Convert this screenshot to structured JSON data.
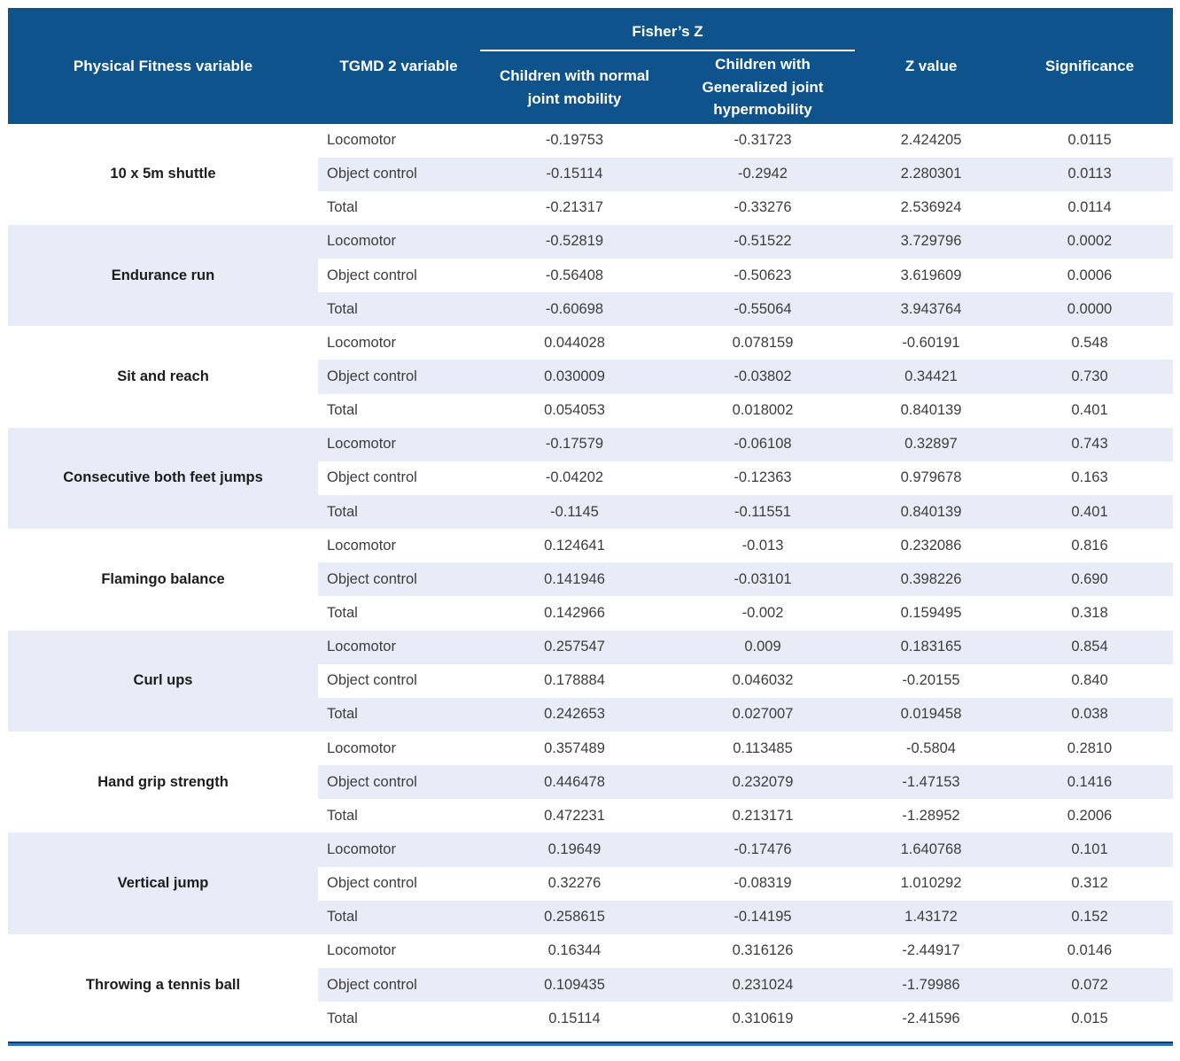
{
  "table": {
    "header": {
      "col_physical": "Physical Fitness variable",
      "col_tgmd": "TGMD 2 variable",
      "fishers_z": "Fisher’s Z",
      "sub_normal": "Children with normal joint mobility",
      "sub_hyper": "Children with Generalized joint hypermobility",
      "col_z": "Z value",
      "col_sig": "Significance"
    },
    "groups": [
      {
        "name": "10 x 5m shuttle",
        "rows": [
          {
            "tgmd": "Locomotor",
            "values": [
              "-0.19753",
              "-0.31723",
              "2.424205",
              "0.0115"
            ]
          },
          {
            "tgmd": "Object control",
            "values": [
              "-0.15114",
              "-0.2942",
              "2.280301",
              "0.0113"
            ]
          },
          {
            "tgmd": "Total",
            "values": [
              "-0.21317",
              "-0.33276",
              "2.536924",
              "0.0114"
            ]
          }
        ]
      },
      {
        "name": "Endurance run",
        "rows": [
          {
            "tgmd": "Locomotor",
            "values": [
              "-0.52819",
              "-0.51522",
              "3.729796",
              "0.0002"
            ]
          },
          {
            "tgmd": "Object control",
            "values": [
              "-0.56408",
              "-0.50623",
              "3.619609",
              "0.0006"
            ]
          },
          {
            "tgmd": "Total",
            "values": [
              "-0.60698",
              "-0.55064",
              "3.943764",
              "0.0000"
            ]
          }
        ]
      },
      {
        "name": "Sit and reach",
        "rows": [
          {
            "tgmd": "Locomotor",
            "values": [
              "0.044028",
              "0.078159",
              "-0.60191",
              "0.548"
            ]
          },
          {
            "tgmd": "Object control",
            "values": [
              "0.030009",
              "-0.03802",
              "0.34421",
              "0.730"
            ]
          },
          {
            "tgmd": "Total",
            "values": [
              "0.054053",
              "0.018002",
              "0.840139",
              "0.401"
            ]
          }
        ]
      },
      {
        "name": "Consecutive both feet jumps",
        "rows": [
          {
            "tgmd": "Locomotor",
            "values": [
              "-0.17579",
              "-0.06108",
              "0.32897",
              "0.743"
            ]
          },
          {
            "tgmd": "Object control",
            "values": [
              "-0.04202",
              "-0.12363",
              "0.979678",
              "0.163"
            ]
          },
          {
            "tgmd": "Total",
            "values": [
              "-0.1145",
              "-0.11551",
              "0.840139",
              "0.401"
            ]
          }
        ]
      },
      {
        "name": "Flamingo balance",
        "rows": [
          {
            "tgmd": "Locomotor",
            "values": [
              "0.124641",
              "-0.013",
              "0.232086",
              "0.816"
            ]
          },
          {
            "tgmd": "Object control",
            "values": [
              "0.141946",
              "-0.03101",
              "0.398226",
              "0.690"
            ]
          },
          {
            "tgmd": "Total",
            "values": [
              "0.142966",
              "-0.002",
              "0.159495",
              "0.318"
            ]
          }
        ]
      },
      {
        "name": "Curl ups",
        "rows": [
          {
            "tgmd": "Locomotor",
            "values": [
              "0.257547",
              "0.009",
              "0.183165",
              "0.854"
            ]
          },
          {
            "tgmd": "Object control",
            "values": [
              "0.178884",
              "0.046032",
              "-0.20155",
              "0.840"
            ]
          },
          {
            "tgmd": "Total",
            "values": [
              "0.242653",
              "0.027007",
              "0.019458",
              "0.038"
            ]
          }
        ]
      },
      {
        "name": "Hand grip strength",
        "rows": [
          {
            "tgmd": "Locomotor",
            "values": [
              "0.357489",
              "0.113485",
              "-0.5804",
              "0.2810"
            ]
          },
          {
            "tgmd": "Object control",
            "values": [
              "0.446478",
              "0.232079",
              "-1.47153",
              "0.1416"
            ]
          },
          {
            "tgmd": "Total",
            "values": [
              "0.472231",
              "0.213171",
              "-1.28952",
              "0.2006"
            ]
          }
        ]
      },
      {
        "name": "Vertical jump",
        "rows": [
          {
            "tgmd": "Locomotor",
            "values": [
              "0.19649",
              "-0.17476",
              "1.640768",
              "0.101"
            ]
          },
          {
            "tgmd": "Object control",
            "values": [
              "0.32276",
              "-0.08319",
              "1.010292",
              "0.312"
            ]
          },
          {
            "tgmd": "Total",
            "values": [
              "0.258615",
              "-0.14195",
              "1.43172",
              "0.152"
            ]
          }
        ]
      },
      {
        "name": "Throwing a tennis ball",
        "rows": [
          {
            "tgmd": "Locomotor",
            "values": [
              "0.16344",
              "0.316126",
              "-2.44917",
              "0.0146"
            ]
          },
          {
            "tgmd": "Object control",
            "values": [
              "0.109435",
              "0.231024",
              "-1.79986",
              "0.072"
            ]
          },
          {
            "tgmd": "Total",
            "values": [
              "0.15114",
              "0.310619",
              "-2.41596",
              "0.015"
            ]
          }
        ]
      }
    ]
  },
  "colors": {
    "header_bg": "#0e538c",
    "row_alt_bg": "#e9ebf7",
    "bottom_rule_dark": "#1c3a5e",
    "bottom_rule_blue": "#2e75b6"
  }
}
